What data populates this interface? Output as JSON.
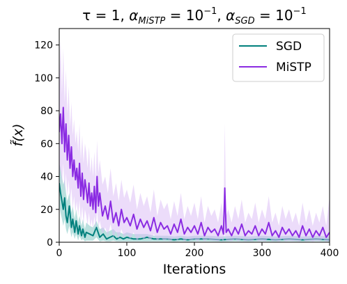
{
  "chart_data": {
    "type": "line",
    "title": "τ = 1, α_MiSTP = 10⁻¹, α_SGD = 10⁻¹",
    "title_parts": {
      "tau": "τ = 1, ",
      "alpha_mistp": "α",
      "sub_mistp": "MiSTP",
      "eq_mistp": " = 10",
      "exp_mistp": "−1",
      "comma": ", ",
      "alpha_sgd": "α",
      "sub_sgd": "SGD",
      "eq_sgd": " = 10",
      "exp_sgd": "−1"
    },
    "xlabel": "Iterations",
    "ylabel": "f̃(x)",
    "xlim": [
      0,
      400
    ],
    "ylim": [
      0,
      130
    ],
    "xticks": [
      0,
      100,
      200,
      300,
      400
    ],
    "yticks": [
      0,
      20,
      40,
      60,
      80,
      100,
      120
    ],
    "grid": false,
    "legend_position": "top-right",
    "series": [
      {
        "name": "SGD",
        "color": "#00807d",
        "band_color": "#7fc6c2",
        "x": [
          0,
          2,
          4,
          6,
          8,
          10,
          12,
          15,
          18,
          20,
          23,
          25,
          28,
          30,
          33,
          35,
          38,
          40,
          45,
          50,
          55,
          60,
          65,
          70,
          75,
          80,
          85,
          90,
          95,
          100,
          110,
          120,
          130,
          140,
          150,
          160,
          170,
          180,
          190,
          200,
          220,
          240,
          260,
          280,
          300,
          320,
          340,
          360,
          380,
          400
        ],
        "values": [
          36,
          30,
          25,
          20,
          27,
          16,
          12,
          22,
          9,
          14,
          6,
          13,
          5,
          10,
          4,
          8,
          3,
          6,
          5,
          4,
          9,
          3,
          5,
          2,
          3,
          4,
          2,
          3,
          2,
          3,
          2,
          2,
          3,
          2,
          2,
          2,
          1.5,
          2,
          1.5,
          2,
          2,
          1.5,
          2,
          1.5,
          2,
          1.5,
          2,
          1.5,
          2,
          1.5
        ],
        "upper": [
          48,
          45,
          40,
          35,
          38,
          30,
          25,
          30,
          18,
          22,
          14,
          20,
          12,
          16,
          10,
          14,
          8,
          12,
          10,
          9,
          13,
          8,
          9,
          6,
          7,
          8,
          6,
          6,
          5,
          6,
          5,
          5,
          5,
          4,
          4,
          4,
          3.5,
          4,
          3.5,
          4,
          4,
          3.5,
          4,
          3.5,
          4,
          3.5,
          4,
          3.5,
          4,
          3.5
        ],
        "lower": [
          22,
          18,
          14,
          10,
          14,
          8,
          5,
          10,
          3,
          6,
          2,
          5,
          1,
          4,
          1,
          2,
          0.5,
          1,
          1,
          1,
          3,
          0.5,
          1,
          0.5,
          0.5,
          1,
          0.5,
          0.5,
          0.5,
          0.5,
          0.5,
          0.5,
          0.5,
          0.5,
          0.5,
          0.5,
          0.3,
          0.5,
          0.3,
          0.5,
          0.5,
          0.3,
          0.5,
          0.3,
          0.5,
          0.3,
          0.5,
          0.3,
          0.5,
          0.3
        ]
      },
      {
        "name": "MiSTP",
        "color": "#8a2be2",
        "band_color": "#dcc0f5",
        "x": [
          0,
          2,
          4,
          6,
          8,
          10,
          12,
          14,
          16,
          18,
          20,
          22,
          24,
          26,
          28,
          30,
          32,
          34,
          36,
          38,
          40,
          42,
          44,
          46,
          48,
          50,
          52,
          54,
          56,
          58,
          60,
          64,
          68,
          72,
          76,
          80,
          84,
          88,
          92,
          96,
          100,
          105,
          110,
          115,
          120,
          125,
          130,
          135,
          140,
          145,
          150,
          155,
          160,
          165,
          170,
          175,
          180,
          185,
          190,
          195,
          200,
          205,
          210,
          215,
          220,
          225,
          230,
          235,
          240,
          243,
          245,
          247,
          250,
          255,
          260,
          265,
          270,
          275,
          280,
          285,
          290,
          295,
          300,
          305,
          310,
          315,
          320,
          325,
          330,
          335,
          340,
          345,
          350,
          355,
          360,
          365,
          370,
          375,
          380,
          385,
          390,
          395,
          400
        ],
        "values": [
          67,
          78,
          60,
          82,
          55,
          72,
          50,
          65,
          45,
          58,
          40,
          50,
          38,
          45,
          33,
          48,
          28,
          42,
          26,
          38,
          32,
          24,
          36,
          22,
          30,
          20,
          34,
          18,
          40,
          22,
          30,
          16,
          22,
          14,
          25,
          12,
          18,
          10,
          20,
          12,
          15,
          10,
          17,
          8,
          14,
          9,
          13,
          7,
          15,
          6,
          12,
          8,
          10,
          5,
          11,
          6,
          14,
          5,
          9,
          6,
          10,
          5,
          12,
          4,
          9,
          6,
          8,
          4,
          10,
          5,
          33,
          6,
          8,
          4,
          9,
          5,
          11,
          4,
          7,
          5,
          10,
          4,
          8,
          5,
          12,
          4,
          7,
          3,
          9,
          5,
          8,
          4,
          7,
          3,
          10,
          4,
          8,
          3,
          7,
          4,
          9,
          3,
          6
        ],
        "upper": [
          95,
          122,
          90,
          118,
          85,
          105,
          78,
          95,
          70,
          85,
          65,
          75,
          60,
          68,
          55,
          72,
          50,
          65,
          48,
          60,
          55,
          45,
          58,
          42,
          52,
          40,
          55,
          38,
          62,
          42,
          50,
          35,
          40,
          30,
          45,
          28,
          36,
          25,
          38,
          27,
          32,
          24,
          35,
          20,
          30,
          22,
          28,
          18,
          32,
          16,
          26,
          20,
          24,
          14,
          25,
          16,
          30,
          14,
          22,
          16,
          24,
          14,
          28,
          12,
          22,
          16,
          20,
          12,
          24,
          14,
          72,
          16,
          20,
          12,
          22,
          14,
          26,
          12,
          18,
          14,
          24,
          12,
          20,
          14,
          28,
          12,
          18,
          10,
          22,
          14,
          20,
          12,
          18,
          10,
          24,
          12,
          20,
          10,
          18,
          12,
          22,
          10,
          28
        ],
        "lower": [
          40,
          45,
          35,
          48,
          30,
          42,
          28,
          38,
          24,
          33,
          20,
          28,
          18,
          25,
          16,
          26,
          12,
          22,
          11,
          20,
          16,
          10,
          18,
          9,
          14,
          8,
          16,
          7,
          20,
          9,
          13,
          5,
          9,
          4,
          11,
          3,
          7,
          2,
          8,
          3,
          5,
          2,
          6,
          1,
          4,
          2,
          4,
          1,
          5,
          1,
          3,
          1,
          2,
          0.5,
          3,
          1,
          4,
          0.5,
          2,
          1,
          2,
          0.5,
          3,
          0.5,
          2,
          1,
          1,
          0.5,
          2,
          0.5,
          5,
          1,
          1,
          0.5,
          2,
          0.5,
          2,
          0.5,
          1,
          0.5,
          2,
          0.5,
          1,
          0.5,
          3,
          0.5,
          1,
          0.3,
          2,
          0.5,
          1,
          0.5,
          1,
          0.3,
          2,
          0.5,
          1,
          0.3,
          1,
          0.5,
          2,
          0.3,
          1
        ]
      }
    ]
  }
}
